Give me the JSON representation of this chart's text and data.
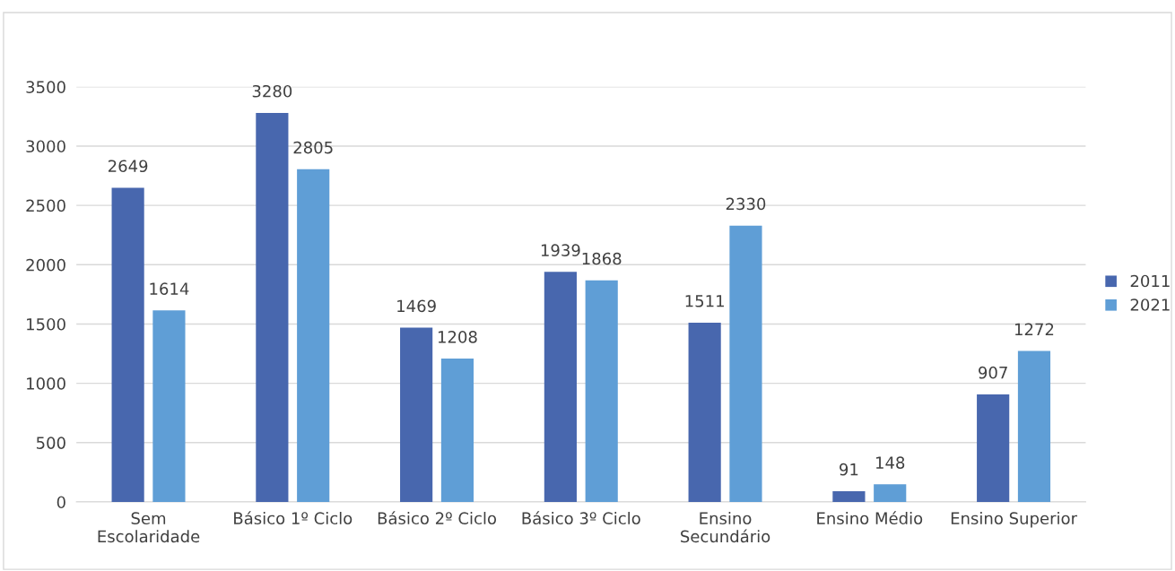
{
  "chart_data": {
    "type": "bar",
    "categories": [
      "Sem\nEscolaridade",
      "Básico 1º Ciclo",
      "Básico 2º Ciclo",
      "Básico 3º Ciclo",
      "Ensino\nSecundário",
      "Ensino Médio",
      "Ensino Superior"
    ],
    "series": [
      {
        "name": "2011",
        "color": "#4867ae",
        "values": [
          2649,
          3280,
          1469,
          1939,
          1511,
          91,
          907
        ]
      },
      {
        "name": "2021",
        "color": "#5f9ed6",
        "values": [
          1614,
          2805,
          1208,
          1868,
          2330,
          148,
          1272
        ]
      }
    ],
    "ylim": [
      0,
      3500
    ],
    "yticks": [
      0,
      500,
      1000,
      1500,
      2000,
      2500,
      3000,
      3500
    ],
    "grid": "y",
    "legend": "right",
    "data_labels": true
  }
}
